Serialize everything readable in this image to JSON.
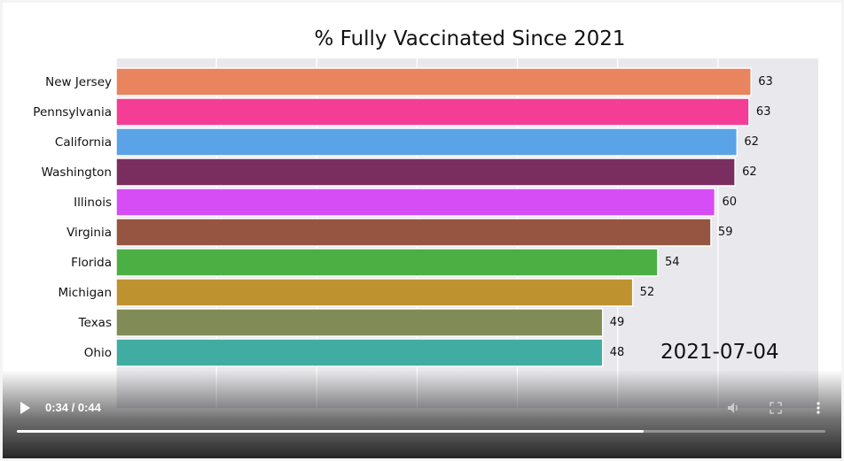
{
  "chart_data": {
    "type": "bar",
    "orientation": "horizontal",
    "title": "% Fully Vaccinated Since 2021",
    "categories": [
      "New Jersey",
      "Pennsylvania",
      "California",
      "Washington",
      "Illinois",
      "Virginia",
      "Florida",
      "Michigan",
      "Texas",
      "Ohio"
    ],
    "values": [
      63.3,
      63.1,
      61.9,
      61.7,
      59.7,
      59.3,
      54.0,
      51.5,
      48.5,
      48.5
    ],
    "value_labels": [
      "63",
      "63",
      "62",
      "62",
      "60",
      "59",
      "54",
      "52",
      "49",
      "48"
    ],
    "colors": [
      "#e8845e",
      "#f43e96",
      "#5aa3e6",
      "#7a2e60",
      "#d64df6",
      "#955541",
      "#4caf43",
      "#bf9230",
      "#818b55",
      "#41ada2"
    ],
    "xlim": [
      0,
      70
    ],
    "xticks": [
      "0",
      "10",
      "20",
      "30",
      "40",
      "50",
      "60"
    ],
    "grid": true,
    "plot_background": "#e9e8ec",
    "date_label": "2021-07-04"
  },
  "player": {
    "time_display": "0:34 / 0:44",
    "progress": 0.775,
    "icons": [
      "play-icon",
      "volume-icon",
      "fullscreen-icon",
      "more-options-icon"
    ]
  }
}
